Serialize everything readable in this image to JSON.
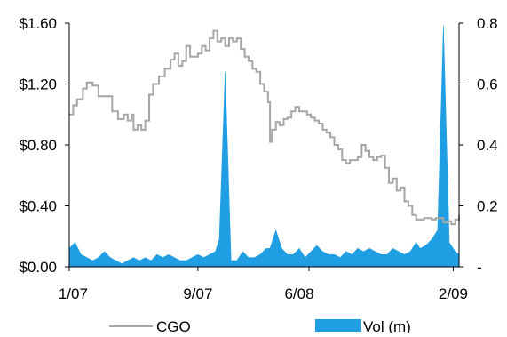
{
  "colors": {
    "price_line": "#a6a6a6",
    "volume_fill": "#1f9ee3",
    "axis": "#000000"
  },
  "chart_data": {
    "type": "line",
    "title": "",
    "xlabel": "",
    "ylabel": "",
    "x_tick_labels": [
      "1/07",
      "9/07",
      "6/08",
      "2/09"
    ],
    "x_range": [
      "2007-01",
      "2009-02"
    ],
    "y_left": {
      "lim": [
        0,
        1.6
      ],
      "ticks": [
        0,
        0.4,
        0.8,
        1.2,
        1.6
      ],
      "tick_labels": [
        "$0.00",
        "$0.40",
        "$0.80",
        "$1.20",
        "$1.60"
      ]
    },
    "y_right": {
      "lim": [
        0,
        0.8
      ],
      "ticks": [
        0,
        0.2,
        0.4,
        0.6,
        0.8
      ],
      "tick_labels": [
        "-",
        "0.2",
        "0.4",
        "0.6",
        "0.8"
      ]
    },
    "grid": false,
    "legend": {
      "placement": "bottom",
      "entries": [
        "CGO",
        "Vol (m)"
      ]
    },
    "series": [
      {
        "name": "CGO",
        "type": "line",
        "axis": "left",
        "color": "#a6a6a6",
        "points": [
          [
            0.0,
            1.0
          ],
          [
            0.01,
            1.06
          ],
          [
            0.02,
            1.1
          ],
          [
            0.035,
            1.17
          ],
          [
            0.045,
            1.21
          ],
          [
            0.06,
            1.19
          ],
          [
            0.075,
            1.12
          ],
          [
            0.09,
            1.12
          ],
          [
            0.11,
            1.02
          ],
          [
            0.125,
            0.97
          ],
          [
            0.14,
            1.0
          ],
          [
            0.15,
            0.96
          ],
          [
            0.16,
            1.0
          ],
          [
            0.165,
            0.9
          ],
          [
            0.175,
            0.93
          ],
          [
            0.185,
            0.9
          ],
          [
            0.195,
            0.96
          ],
          [
            0.205,
            1.13
          ],
          [
            0.215,
            1.2
          ],
          [
            0.23,
            1.25
          ],
          [
            0.245,
            1.3
          ],
          [
            0.26,
            1.36
          ],
          [
            0.27,
            1.4
          ],
          [
            0.28,
            1.32
          ],
          [
            0.29,
            1.35
          ],
          [
            0.3,
            1.45
          ],
          [
            0.31,
            1.38
          ],
          [
            0.32,
            1.38
          ],
          [
            0.33,
            1.4
          ],
          [
            0.34,
            1.45
          ],
          [
            0.35,
            1.42
          ],
          [
            0.36,
            1.5
          ],
          [
            0.37,
            1.55
          ],
          [
            0.38,
            1.48
          ],
          [
            0.39,
            1.5
          ],
          [
            0.4,
            1.45
          ],
          [
            0.41,
            1.5
          ],
          [
            0.42,
            1.48
          ],
          [
            0.43,
            1.5
          ],
          [
            0.44,
            1.43
          ],
          [
            0.45,
            1.38
          ],
          [
            0.46,
            1.35
          ],
          [
            0.47,
            1.3
          ],
          [
            0.48,
            1.28
          ],
          [
            0.49,
            1.2
          ],
          [
            0.5,
            1.15
          ],
          [
            0.51,
            1.08
          ],
          [
            0.515,
            0.82
          ],
          [
            0.52,
            0.9
          ],
          [
            0.53,
            0.95
          ],
          [
            0.54,
            0.93
          ],
          [
            0.55,
            0.97
          ],
          [
            0.56,
            0.98
          ],
          [
            0.57,
            1.02
          ],
          [
            0.58,
            1.05
          ],
          [
            0.59,
            1.02
          ],
          [
            0.6,
            1.02
          ],
          [
            0.61,
            1.0
          ],
          [
            0.62,
            0.98
          ],
          [
            0.63,
            0.96
          ],
          [
            0.64,
            0.94
          ],
          [
            0.65,
            0.9
          ],
          [
            0.66,
            0.88
          ],
          [
            0.67,
            0.85
          ],
          [
            0.68,
            0.8
          ],
          [
            0.69,
            0.77
          ],
          [
            0.7,
            0.7
          ],
          [
            0.71,
            0.68
          ],
          [
            0.72,
            0.7
          ],
          [
            0.73,
            0.7
          ],
          [
            0.74,
            0.72
          ],
          [
            0.75,
            0.8
          ],
          [
            0.76,
            0.76
          ],
          [
            0.77,
            0.72
          ],
          [
            0.78,
            0.7
          ],
          [
            0.79,
            0.72
          ],
          [
            0.8,
            0.73
          ],
          [
            0.81,
            0.65
          ],
          [
            0.82,
            0.55
          ],
          [
            0.83,
            0.58
          ],
          [
            0.84,
            0.5
          ],
          [
            0.85,
            0.52
          ],
          [
            0.86,
            0.43
          ],
          [
            0.87,
            0.4
          ],
          [
            0.88,
            0.34
          ],
          [
            0.89,
            0.31
          ],
          [
            0.9,
            0.31
          ],
          [
            0.91,
            0.32
          ],
          [
            0.92,
            0.32
          ],
          [
            0.93,
            0.31
          ],
          [
            0.94,
            0.32
          ],
          [
            0.95,
            0.32
          ],
          [
            0.96,
            0.29
          ],
          [
            0.97,
            0.3
          ],
          [
            0.98,
            0.28
          ],
          [
            0.99,
            0.31
          ],
          [
            1.0,
            0.34
          ]
        ]
      },
      {
        "name": "Vol (m)",
        "type": "area",
        "axis": "right",
        "color": "#1f9ee3",
        "points": [
          [
            0.0,
            0.06
          ],
          [
            0.015,
            0.08
          ],
          [
            0.03,
            0.04
          ],
          [
            0.045,
            0.03
          ],
          [
            0.06,
            0.02
          ],
          [
            0.075,
            0.03
          ],
          [
            0.09,
            0.05
          ],
          [
            0.105,
            0.03
          ],
          [
            0.12,
            0.02
          ],
          [
            0.135,
            0.01
          ],
          [
            0.15,
            0.02
          ],
          [
            0.165,
            0.03
          ],
          [
            0.18,
            0.02
          ],
          [
            0.195,
            0.03
          ],
          [
            0.21,
            0.02
          ],
          [
            0.225,
            0.04
          ],
          [
            0.24,
            0.03
          ],
          [
            0.255,
            0.04
          ],
          [
            0.27,
            0.03
          ],
          [
            0.285,
            0.02
          ],
          [
            0.3,
            0.02
          ],
          [
            0.315,
            0.03
          ],
          [
            0.33,
            0.04
          ],
          [
            0.345,
            0.03
          ],
          [
            0.36,
            0.04
          ],
          [
            0.375,
            0.05
          ],
          [
            0.385,
            0.09
          ],
          [
            0.4,
            0.64
          ],
          [
            0.415,
            0.02
          ],
          [
            0.43,
            0.02
          ],
          [
            0.445,
            0.05
          ],
          [
            0.46,
            0.03
          ],
          [
            0.475,
            0.03
          ],
          [
            0.49,
            0.04
          ],
          [
            0.505,
            0.06
          ],
          [
            0.515,
            0.06
          ],
          [
            0.53,
            0.12
          ],
          [
            0.545,
            0.06
          ],
          [
            0.56,
            0.04
          ],
          [
            0.575,
            0.04
          ],
          [
            0.59,
            0.06
          ],
          [
            0.605,
            0.03
          ],
          [
            0.62,
            0.05
          ],
          [
            0.635,
            0.07
          ],
          [
            0.65,
            0.05
          ],
          [
            0.665,
            0.04
          ],
          [
            0.68,
            0.04
          ],
          [
            0.695,
            0.03
          ],
          [
            0.71,
            0.05
          ],
          [
            0.725,
            0.04
          ],
          [
            0.74,
            0.06
          ],
          [
            0.755,
            0.05
          ],
          [
            0.77,
            0.06
          ],
          [
            0.785,
            0.05
          ],
          [
            0.8,
            0.04
          ],
          [
            0.815,
            0.04
          ],
          [
            0.83,
            0.06
          ],
          [
            0.845,
            0.05
          ],
          [
            0.86,
            0.04
          ],
          [
            0.875,
            0.05
          ],
          [
            0.89,
            0.08
          ],
          [
            0.9,
            0.06
          ],
          [
            0.915,
            0.07
          ],
          [
            0.93,
            0.09
          ],
          [
            0.945,
            0.12
          ],
          [
            0.96,
            0.79
          ],
          [
            0.975,
            0.08
          ],
          [
            0.99,
            0.05
          ],
          [
            1.0,
            0.04
          ]
        ]
      }
    ]
  }
}
